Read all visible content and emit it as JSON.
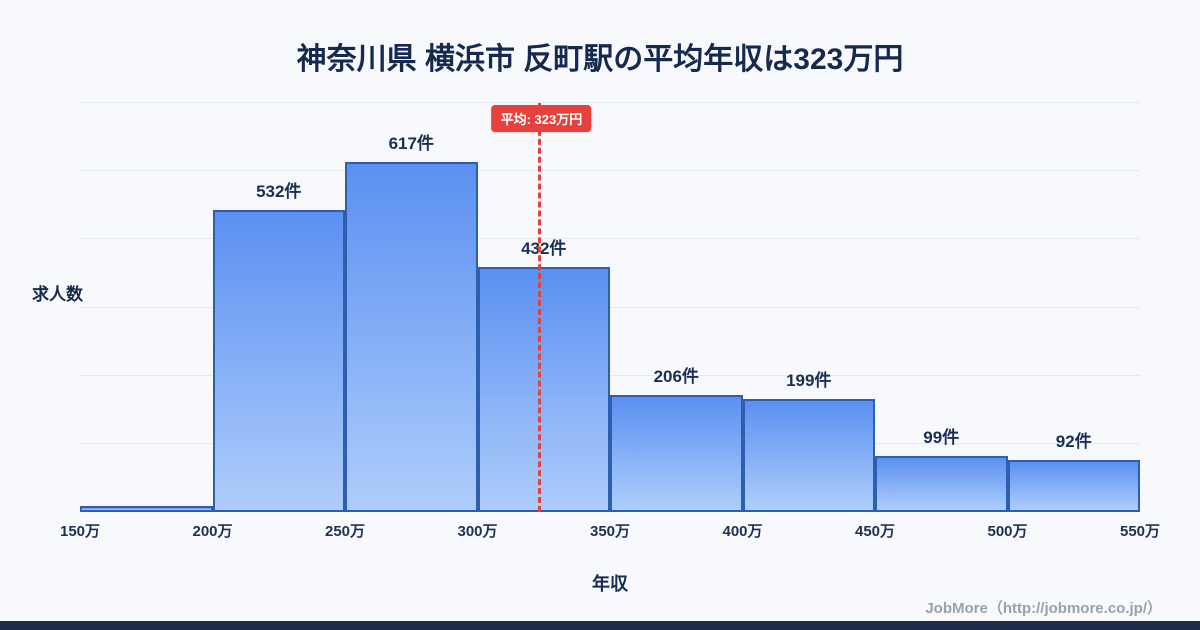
{
  "page": {
    "title": "神奈川県 横浜市 反町駅の平均年収は323万円"
  },
  "chart_data": {
    "type": "bar",
    "title": "神奈川県 横浜市 反町駅の平均年収は323万円",
    "xlabel": "年収",
    "ylabel": "求人数",
    "bin_edges": [
      "150万",
      "200万",
      "250万",
      "300万",
      "350万",
      "400万",
      "450万",
      "500万",
      "550万"
    ],
    "x_range": [
      150,
      550
    ],
    "values": [
      10,
      532,
      617,
      432,
      206,
      199,
      99,
      92
    ],
    "bar_labels": [
      "",
      "532件",
      "617件",
      "432件",
      "206件",
      "199件",
      "99件",
      "92件"
    ],
    "ylim": [
      0,
      720
    ],
    "grid_step": 120,
    "grid": "on",
    "legend": "none",
    "average_line": {
      "x_value": 323,
      "label": "平均: 323万円"
    },
    "colors": {
      "bar_gradient_top": "#5b90f1",
      "bar_gradient_bottom": "#aecdfb",
      "bar_border": "#2d5fae",
      "average_line": "#e6413d",
      "badge_bg": "#e6413d",
      "badge_text": "#ffffff",
      "text_dark": "#1b2e54",
      "grid": "#e4eaf2"
    }
  },
  "footer": {
    "credit": "JobMore（http://jobmore.co.jp/）"
  }
}
